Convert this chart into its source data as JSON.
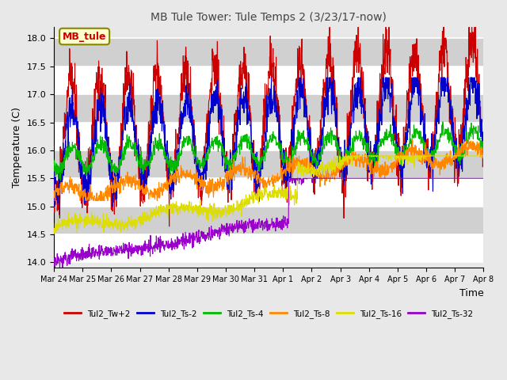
{
  "title": "MB Tule Tower: Tule Temps 2 (3/23/17-now)",
  "xlabel": "Time",
  "ylabel": "Temperature (C)",
  "ylim": [
    13.9,
    18.2
  ],
  "series": [
    {
      "label": "Tul2_Tw+2",
      "color": "#cc0000"
    },
    {
      "label": "Tul2_Ts-2",
      "color": "#0000cc"
    },
    {
      "label": "Tul2_Ts-4",
      "color": "#00bb00"
    },
    {
      "label": "Tul2_Ts-8",
      "color": "#ff8800"
    },
    {
      "label": "Tul2_Ts-16",
      "color": "#dddd00"
    },
    {
      "label": "Tul2_Ts-32",
      "color": "#9900cc"
    }
  ],
  "xtick_labels": [
    "Mar 24",
    "Mar 25",
    "Mar 26",
    "Mar 27",
    "Mar 28",
    "Mar 29",
    "Mar 30",
    "Mar 31",
    "Apr 1",
    "Apr 2",
    "Apr 3",
    "Apr 4",
    "Apr 5",
    "Apr 6",
    "Apr 7",
    "Apr 8"
  ],
  "annotation_text": "MB_tule",
  "annotation_color": "#cc0000",
  "annotation_bg": "#ffffcc",
  "annotation_border": "#888800"
}
